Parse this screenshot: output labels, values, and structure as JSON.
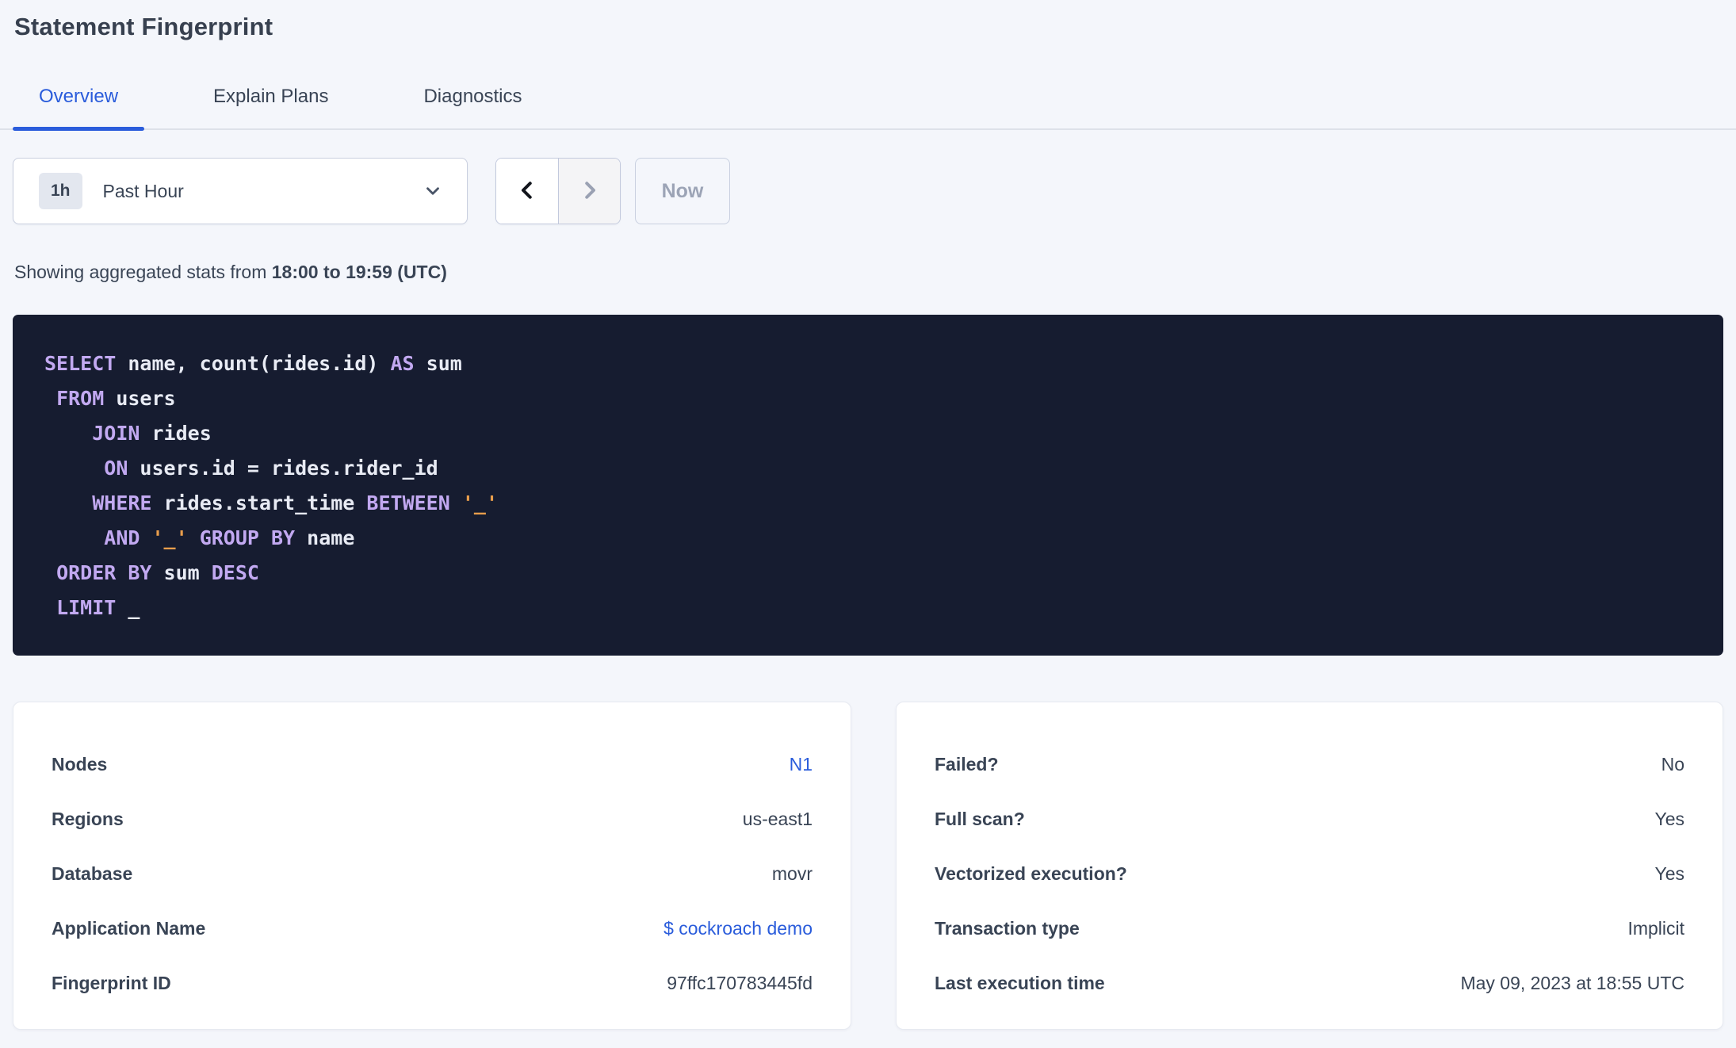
{
  "page": {
    "title": "Statement Fingerprint"
  },
  "tabs": {
    "items": [
      {
        "label": "Overview",
        "active": true
      },
      {
        "label": "Explain Plans",
        "active": false
      },
      {
        "label": "Diagnostics",
        "active": false
      }
    ]
  },
  "time_controls": {
    "range_badge": "1h",
    "range_label": "Past Hour",
    "now_label": "Now",
    "icons": {
      "select": "chevron-down-icon",
      "prev": "chevron-left-icon",
      "next": "chevron-right-icon"
    },
    "prev_enabled": true,
    "next_enabled": false,
    "now_enabled": false
  },
  "stats_line": {
    "prefix": "Showing aggregated stats from ",
    "range_bold": "18:00 to 19:59 (UTC)"
  },
  "sql": {
    "lines": [
      [
        {
          "t": "SELECT",
          "c": "kw"
        },
        {
          "t": " name, count(rides.id) ",
          "c": "id"
        },
        {
          "t": "AS",
          "c": "kw"
        },
        {
          "t": " sum",
          "c": "id"
        }
      ],
      [
        {
          "t": " ",
          "c": "id"
        },
        {
          "t": "FROM",
          "c": "kw"
        },
        {
          "t": " users",
          "c": "id"
        }
      ],
      [
        {
          "t": "    ",
          "c": "id"
        },
        {
          "t": "JOIN",
          "c": "kw"
        },
        {
          "t": " rides",
          "c": "id"
        }
      ],
      [
        {
          "t": "     ",
          "c": "id"
        },
        {
          "t": "ON",
          "c": "kw"
        },
        {
          "t": " users.id = rides.rider_id",
          "c": "id"
        }
      ],
      [
        {
          "t": "    ",
          "c": "id"
        },
        {
          "t": "WHERE",
          "c": "kw"
        },
        {
          "t": " rides.start_time ",
          "c": "id"
        },
        {
          "t": "BETWEEN",
          "c": "kw"
        },
        {
          "t": " ",
          "c": "id"
        },
        {
          "t": "'_'",
          "c": "lit"
        }
      ],
      [
        {
          "t": "     ",
          "c": "id"
        },
        {
          "t": "AND",
          "c": "kw"
        },
        {
          "t": " ",
          "c": "id"
        },
        {
          "t": "'_'",
          "c": "lit"
        },
        {
          "t": " ",
          "c": "id"
        },
        {
          "t": "GROUP BY",
          "c": "kw"
        },
        {
          "t": " name",
          "c": "id"
        }
      ],
      [
        {
          "t": " ",
          "c": "id"
        },
        {
          "t": "ORDER BY",
          "c": "kw"
        },
        {
          "t": " sum ",
          "c": "id"
        },
        {
          "t": "DESC",
          "c": "kw"
        }
      ],
      [
        {
          "t": " ",
          "c": "id"
        },
        {
          "t": "LIMIT",
          "c": "kw"
        },
        {
          "t": " _",
          "c": "id"
        }
      ]
    ]
  },
  "cards": {
    "left": {
      "rows": [
        {
          "label": "Nodes",
          "value": "N1",
          "link": true
        },
        {
          "label": "Regions",
          "value": "us-east1",
          "link": false
        },
        {
          "label": "Database",
          "value": "movr",
          "link": false
        },
        {
          "label": "Application Name",
          "value": "$ cockroach demo",
          "link": true
        },
        {
          "label": "Fingerprint ID",
          "value": "97ffc170783445fd",
          "link": false
        }
      ]
    },
    "right": {
      "rows": [
        {
          "label": "Failed?",
          "value": "No",
          "link": false
        },
        {
          "label": "Full scan?",
          "value": "Yes",
          "link": false
        },
        {
          "label": "Vectorized execution?",
          "value": "Yes",
          "link": false
        },
        {
          "label": "Transaction type",
          "value": "Implicit",
          "link": false
        },
        {
          "label": "Last execution time",
          "value": "May 09, 2023 at 18:55 UTC",
          "link": false
        }
      ]
    }
  },
  "colors": {
    "accent": "#2A5CDB",
    "page_bg": "#F4F6FB",
    "text": "#394455",
    "code_bg": "#161C30",
    "code_keyword": "#C2A9F1",
    "code_literal": "#E99E4C",
    "code_text": "#E8EBF4",
    "disabled_text": "#9CA4B6"
  }
}
